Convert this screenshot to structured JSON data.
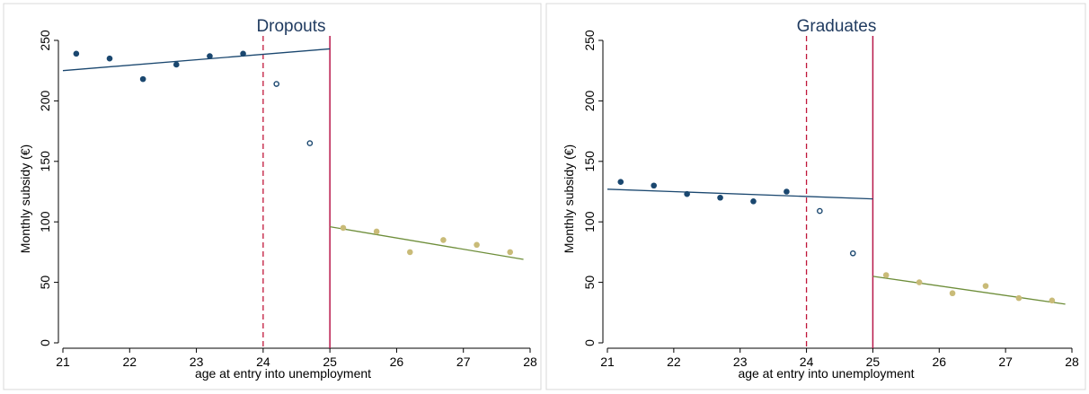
{
  "colors": {
    "navy": "#1a476f",
    "olive": "#6e8e3a",
    "khaki": "#c9bb78",
    "cutoff_dashed": "#c0163a",
    "cutoff_solid": "#b8174a",
    "frame": "#d9d9d9"
  },
  "chart_data": [
    {
      "type": "scatter",
      "title": "Dropouts",
      "xlabel": "age at entry into unemployment",
      "ylabel": "Monthly subsidy (€)",
      "xlim": [
        21,
        28
      ],
      "ylim": [
        0,
        250
      ],
      "xticks": [
        "21",
        "22",
        "23",
        "24",
        "25",
        "26",
        "27",
        "28"
      ],
      "yticks": [
        "0",
        "50",
        "100",
        "150",
        "200",
        "250"
      ],
      "dashed_cutoff": 24,
      "solid_cutoff": 25,
      "series": [
        {
          "marker": "filled",
          "color_key": "navy",
          "x": [
            21.2,
            21.7,
            22.2,
            22.7,
            23.2,
            23.7
          ],
          "y": [
            239,
            235,
            218,
            230,
            237,
            239
          ]
        },
        {
          "marker": "hollow",
          "color_key": "navy",
          "x": [
            24.2,
            24.7
          ],
          "y": [
            214,
            165
          ]
        },
        {
          "marker": "filled",
          "color_key": "khaki",
          "x": [
            25.2,
            25.7,
            26.2,
            26.7,
            27.2,
            27.7
          ],
          "y": [
            95,
            92,
            75,
            85,
            81,
            75
          ]
        }
      ],
      "fit_lines": [
        {
          "color_key": "navy",
          "x": [
            21,
            25
          ],
          "y": [
            225,
            243
          ]
        },
        {
          "color_key": "olive",
          "x": [
            25,
            27.9
          ],
          "y": [
            96,
            69
          ]
        }
      ]
    },
    {
      "type": "scatter",
      "title": "Graduates",
      "xlabel": "age at entry into unemployment",
      "ylabel": "Monthly subsidy (€)",
      "xlim": [
        21,
        28
      ],
      "ylim": [
        0,
        250
      ],
      "xticks": [
        "21",
        "22",
        "23",
        "24",
        "25",
        "26",
        "27",
        "28"
      ],
      "yticks": [
        "0",
        "50",
        "100",
        "150",
        "200",
        "250"
      ],
      "dashed_cutoff": 24,
      "solid_cutoff": 25,
      "series": [
        {
          "marker": "filled",
          "color_key": "navy",
          "x": [
            21.2,
            21.7,
            22.2,
            22.7,
            23.2,
            23.7
          ],
          "y": [
            133,
            130,
            123,
            120,
            117,
            125
          ]
        },
        {
          "marker": "hollow",
          "color_key": "navy",
          "x": [
            24.2,
            24.7
          ],
          "y": [
            109,
            74
          ]
        },
        {
          "marker": "filled",
          "color_key": "khaki",
          "x": [
            25.2,
            25.7,
            26.2,
            26.7,
            27.2,
            27.7
          ],
          "y": [
            56,
            50,
            41,
            47,
            37,
            35
          ]
        }
      ],
      "fit_lines": [
        {
          "color_key": "navy",
          "x": [
            21,
            25
          ],
          "y": [
            127,
            119
          ]
        },
        {
          "color_key": "olive",
          "x": [
            25,
            27.9
          ],
          "y": [
            55,
            32
          ]
        }
      ]
    }
  ]
}
